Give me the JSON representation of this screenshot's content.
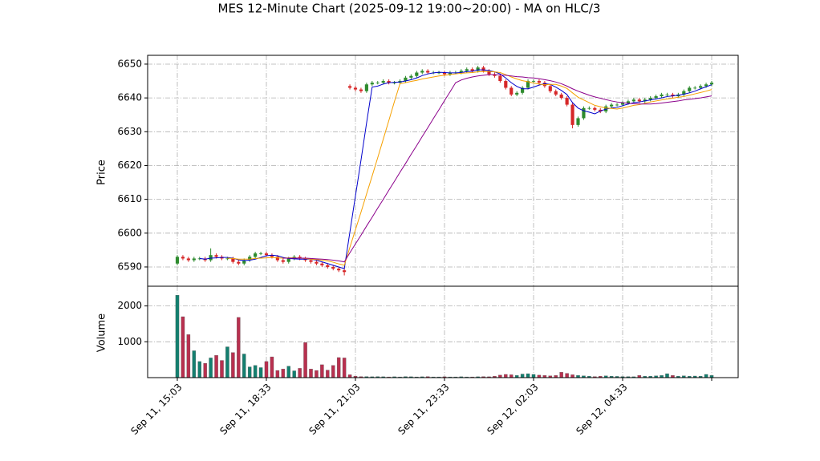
{
  "chart_data": {
    "type": "candlestick",
    "title": "MES 12-Minute Chart (2025-09-12 19:00~20:00) - MA on HLC/3",
    "ylabel": "Price",
    "grid": true,
    "up_color": "#2e8b2e",
    "down_color": "#d62728",
    "ylim": [
      6584.3,
      6652.6
    ],
    "yticks": [
      6590,
      6600,
      6610,
      6620,
      6630,
      6640,
      6650
    ],
    "categories": [
      "Sep 11, 15:03",
      null,
      null,
      null,
      null,
      null,
      null,
      null,
      null,
      null,
      null,
      null,
      null,
      null,
      null,
      null,
      "Sep 11, 18:33",
      null,
      null,
      null,
      null,
      null,
      null,
      null,
      null,
      null,
      null,
      null,
      null,
      null,
      null,
      null,
      "Sep 11, 21:03",
      null,
      null,
      null,
      null,
      null,
      null,
      null,
      null,
      null,
      null,
      null,
      null,
      null,
      null,
      null,
      "Sep 11, 23:33",
      null,
      null,
      null,
      null,
      null,
      null,
      null,
      null,
      null,
      null,
      null,
      null,
      null,
      null,
      null,
      "Sep 12, 02:03",
      null,
      null,
      null,
      null,
      null,
      null,
      null,
      null,
      null,
      null,
      null,
      null,
      null,
      null,
      null,
      "Sep 12, 04:33",
      null,
      null,
      null,
      null,
      null,
      null,
      null,
      null,
      null,
      null,
      null,
      null,
      null,
      null,
      null,
      null
    ],
    "open": [
      6591,
      6593,
      6592.5,
      6592,
      6592.5,
      6592.5,
      6592,
      6593.5,
      6593,
      6592.5,
      6592.5,
      6591.5,
      6591,
      6592,
      6593,
      6594,
      6594,
      6593.5,
      6593,
      6592,
      6591.5,
      6592.5,
      6593,
      6592.5,
      6592,
      6591.5,
      6591,
      6590.5,
      6590,
      6589.5,
      6589,
      6643.5,
      6643,
      6642.5,
      6642,
      6644,
      6644.5,
      6644.5,
      6645,
      6644.5,
      6644.5,
      6645,
      6646,
      6646.5,
      6647.5,
      6648,
      6647.5,
      6647.5,
      6647.5,
      6647,
      6647.5,
      6647.5,
      6648,
      6648.5,
      6648,
      6649,
      6648,
      6647,
      6646.5,
      6645,
      6643,
      6641,
      6641.5,
      6643,
      6645,
      6645,
      6644.5,
      6643.5,
      6642,
      6641,
      6640,
      6638,
      6632,
      6634,
      6637,
      6637,
      6636.5,
      6636,
      6637.5,
      6638,
      6638,
      6638.5,
      6639,
      6639.5,
      6639,
      6639.5,
      6640,
      6640.5,
      6641,
      6641,
      6640.5,
      6641,
      6642,
      6643,
      6643,
      6643.5,
      6644
    ],
    "high": [
      6593.5,
      6593.5,
      6593,
      6593,
      6593,
      6593,
      6595.5,
      6594,
      6593.5,
      6593,
      6593,
      6592,
      6592.5,
      6593.5,
      6594.5,
      6594.5,
      6594.5,
      6594,
      6593.5,
      6592.5,
      6593,
      6593.5,
      6593.5,
      6593,
      6592.5,
      6592,
      6591.5,
      6591,
      6590.5,
      6590,
      6589.5,
      6644,
      6643.5,
      6643,
      6644.5,
      6645,
      6645,
      6645.5,
      6645.5,
      6645,
      6645.5,
      6646.5,
      6647,
      6648,
      6648.5,
      6648.5,
      6648,
      6648,
      6648,
      6648,
      6648,
      6648.5,
      6649,
      6649,
      6649.5,
      6649.5,
      6648.5,
      6647.5,
      6647,
      6645.5,
      6643.5,
      6642,
      6643.5,
      6645.5,
      6645.5,
      6645.5,
      6645,
      6644,
      6642.5,
      6641.5,
      6640.5,
      6638.5,
      6634.5,
      6637.5,
      6637.5,
      6637.5,
      6637,
      6638,
      6638.5,
      6638.5,
      6639,
      6639.5,
      6640,
      6640,
      6640,
      6640.5,
      6641,
      6641.5,
      6641.5,
      6641.5,
      6641.5,
      6642.5,
      6643.5,
      6643.5,
      6644,
      6644.5,
      6645
    ],
    "low": [
      6590.5,
      6592,
      6591.5,
      6591.5,
      6592,
      6591.5,
      6591.5,
      6592.5,
      6592,
      6592,
      6591,
      6590.5,
      6590.5,
      6591.5,
      6592.5,
      6593.5,
      6593,
      6592.5,
      6591.5,
      6591,
      6591,
      6592,
      6592,
      6591.5,
      6591,
      6590.5,
      6590,
      6589.5,
      6589,
      6588.5,
      6587.5,
      6642.5,
      6642,
      6641.5,
      6641.5,
      6643.5,
      6644,
      6644,
      6644,
      6644,
      6644,
      6644.5,
      6645.5,
      6646,
      6647,
      6647,
      6647,
      6647,
      6646.5,
      6646.5,
      6647,
      6647,
      6647.5,
      6647.5,
      6647.5,
      6647.5,
      6646.5,
      6646,
      6644.5,
      6642.5,
      6640.5,
      6640.5,
      6641,
      6642.5,
      6644.5,
      6644,
      6643,
      6641.5,
      6640.5,
      6639.5,
      6637.5,
      6631,
      6631.5,
      6633.5,
      6636.5,
      6636,
      6635.5,
      6635.5,
      6637,
      6637.5,
      6637.5,
      6638,
      6638.5,
      6638.5,
      6638.5,
      6639,
      6639.5,
      6640,
      6640.5,
      6640,
      6640,
      6640.5,
      6641.5,
      6642.5,
      6642.5,
      6643,
      6643.5
    ],
    "close": [
      6593,
      6592.5,
      6592,
      6592.5,
      6592.5,
      6592,
      6593.5,
      6593,
      6592.5,
      6592.5,
      6591.5,
      6591,
      6592,
      6593,
      6594,
      6594,
      6593.5,
      6593,
      6592,
      6591.5,
      6592.5,
      6593,
      6592.5,
      6592,
      6591.5,
      6591,
      6590.5,
      6590,
      6589.5,
      6589,
      6588.5,
      6643,
      6642.5,
      6642,
      6644,
      6644.5,
      6644.5,
      6645,
      6644.5,
      6644.5,
      6645,
      6646,
      6646.5,
      6647.5,
      6648,
      6647.5,
      6647.5,
      6647.5,
      6647,
      6647.5,
      6647.5,
      6648,
      6648.5,
      6648,
      6649,
      6648,
      6647,
      6646.5,
      6645,
      6643,
      6641,
      6641.5,
      6643,
      6645,
      6645,
      6644.5,
      6643.5,
      6642,
      6641,
      6640,
      6638,
      6632,
      6634,
      6637,
      6637,
      6636.5,
      6636,
      6637.5,
      6638,
      6638,
      6638.5,
      6639,
      6639.5,
      6639,
      6639.5,
      6640,
      6640.5,
      6641,
      6641,
      6640.5,
      6641,
      6642,
      6643,
      6643,
      6643.5,
      6644,
      6644.5
    ],
    "lines": [
      {
        "color": "#0000cc",
        "values": [
          null,
          null,
          null,
          null,
          6592.5,
          6592.3,
          6592.6,
          6592.7,
          6592.8,
          6592.8,
          6592.6,
          6592.1,
          6591.9,
          6592.0,
          6592.3,
          6592.8,
          6593.3,
          6593.5,
          6593.3,
          6592.8,
          6592.5,
          6592.4,
          6592.3,
          6592.3,
          6592.3,
          6592.0,
          6591.5,
          6591.0,
          6590.5,
          6590.0,
          6589.5,
          6600.3,
          6611.0,
          6621.6,
          6632.6,
          6643.2,
          6643.5,
          6644.1,
          6644.5,
          6644.6,
          6644.7,
          6645.0,
          6645.4,
          6645.9,
          6646.6,
          6647.1,
          6647.4,
          6647.6,
          6647.5,
          6647.4,
          6647.4,
          6647.5,
          6647.8,
          6647.9,
          6648.3,
          6648.3,
          6648.1,
          6647.7,
          6647.1,
          6645.9,
          6644.5,
          6643.4,
          6642.7,
          6642.7,
          6643.2,
          6643.8,
          6644.2,
          6644.0,
          6643.2,
          6642.2,
          6641.0,
          6638.6,
          6637.0,
          6636.2,
          6635.8,
          6635.3,
          6636.1,
          6636.7,
          6637.0,
          6637.2,
          6637.7,
          6638.2,
          6638.6,
          6638.8,
          6639.1,
          6639.4,
          6639.7,
          6640.0,
          6640.4,
          6640.6,
          6640.8,
          6641.1,
          6641.5,
          6642.0,
          6642.7,
          6643.3,
          6643.9
        ]
      },
      {
        "color": "#f5a000",
        "values": [
          null,
          null,
          null,
          null,
          null,
          null,
          null,
          null,
          null,
          6592.6,
          6592.5,
          6592.3,
          6592.3,
          6592.3,
          6592.5,
          6592.6,
          6592.7,
          6592.8,
          6592.7,
          6592.6,
          6592.7,
          6592.7,
          6592.6,
          6592.5,
          6592.3,
          6592.2,
          6592.0,
          6591.8,
          6591.4,
          6590.9,
          6590.5,
          6595.8,
          6601.0,
          6606.2,
          6611.6,
          6616.9,
          6622.3,
          6627.8,
          6633.3,
          6638.9,
          6644.2,
          6644.5,
          6644.9,
          6645.2,
          6645.6,
          6645.9,
          6646.2,
          6646.5,
          6646.7,
          6646.9,
          6647.1,
          6647.3,
          6647.4,
          6647.5,
          6647.7,
          6647.8,
          6647.8,
          6647.7,
          6647.5,
          6646.9,
          6646.2,
          6645.6,
          6645.1,
          6644.8,
          6644.4,
          6644.1,
          6643.9,
          6644.0,
          6644.0,
          6643.5,
          6642.8,
          6641.5,
          6640.2,
          6639.4,
          6638.6,
          6637.8,
          6637.4,
          6637.0,
          6636.9,
          6636.7,
          6637.0,
          6637.4,
          6637.8,
          6638.0,
          6638.4,
          6638.8,
          6639.1,
          6639.4,
          6639.7,
          6639.9,
          6640.2,
          6640.4,
          6640.8,
          6641.2,
          6641.6,
          6642.0,
          6642.5
        ]
      },
      {
        "color": "#8b008b",
        "values": [
          null,
          null,
          null,
          null,
          null,
          null,
          null,
          null,
          null,
          null,
          null,
          null,
          null,
          null,
          null,
          null,
          null,
          null,
          null,
          6592.6,
          6592.6,
          6592.6,
          6592.6,
          6592.6,
          6592.5,
          6592.4,
          6592.3,
          6592.2,
          6592.0,
          6591.8,
          6591.5,
          6594.2,
          6596.8,
          6599.4,
          6602.1,
          6604.7,
          6607.4,
          6610.0,
          6612.7,
          6615.3,
          6618.0,
          6620.6,
          6623.3,
          6625.9,
          6628.6,
          6631.2,
          6633.9,
          6636.5,
          6639.2,
          6641.8,
          6644.5,
          6645.3,
          6645.8,
          6646.2,
          6646.5,
          6646.7,
          6646.9,
          6646.9,
          6646.8,
          6646.7,
          6646.5,
          6646.3,
          6646.2,
          6646.0,
          6645.9,
          6645.7,
          6645.4,
          6645.1,
          6644.7,
          6644.2,
          6643.5,
          6642.7,
          6642.0,
          6641.4,
          6640.8,
          6640.3,
          6639.9,
          6639.5,
          6639.1,
          6638.8,
          6638.6,
          6638.4,
          6638.3,
          6638.2,
          6638.2,
          6638.2,
          6638.3,
          6638.5,
          6638.7,
          6638.9,
          6639.1,
          6639.4,
          6639.6,
          6639.8,
          6640.0,
          6640.3,
          6640.6
        ]
      }
    ],
    "volume": {
      "ylabel": "Volume",
      "up_color": "#137f6f",
      "down_color": "#b8304f",
      "ylim": [
        0,
        2550
      ],
      "yticks": [
        1000,
        2000
      ],
      "values": [
        2300,
        1700,
        1200,
        750,
        450,
        400,
        550,
        620,
        480,
        860,
        700,
        1680,
        660,
        300,
        340,
        280,
        450,
        580,
        200,
        240,
        320,
        190,
        260,
        980,
        240,
        200,
        360,
        210,
        340,
        560,
        550,
        80,
        40,
        30,
        30,
        25,
        30,
        25,
        20,
        25,
        20,
        30,
        25,
        20,
        25,
        30,
        20,
        20,
        25,
        20,
        20,
        25,
        20,
        20,
        25,
        30,
        25,
        40,
        70,
        90,
        80,
        60,
        100,
        110,
        90,
        70,
        60,
        50,
        60,
        150,
        120,
        80,
        60,
        50,
        40,
        30,
        40,
        50,
        40,
        35,
        30,
        30,
        25,
        60,
        40,
        40,
        50,
        60,
        110,
        60,
        40,
        50,
        40,
        45,
        40,
        90,
        60
      ]
    }
  }
}
